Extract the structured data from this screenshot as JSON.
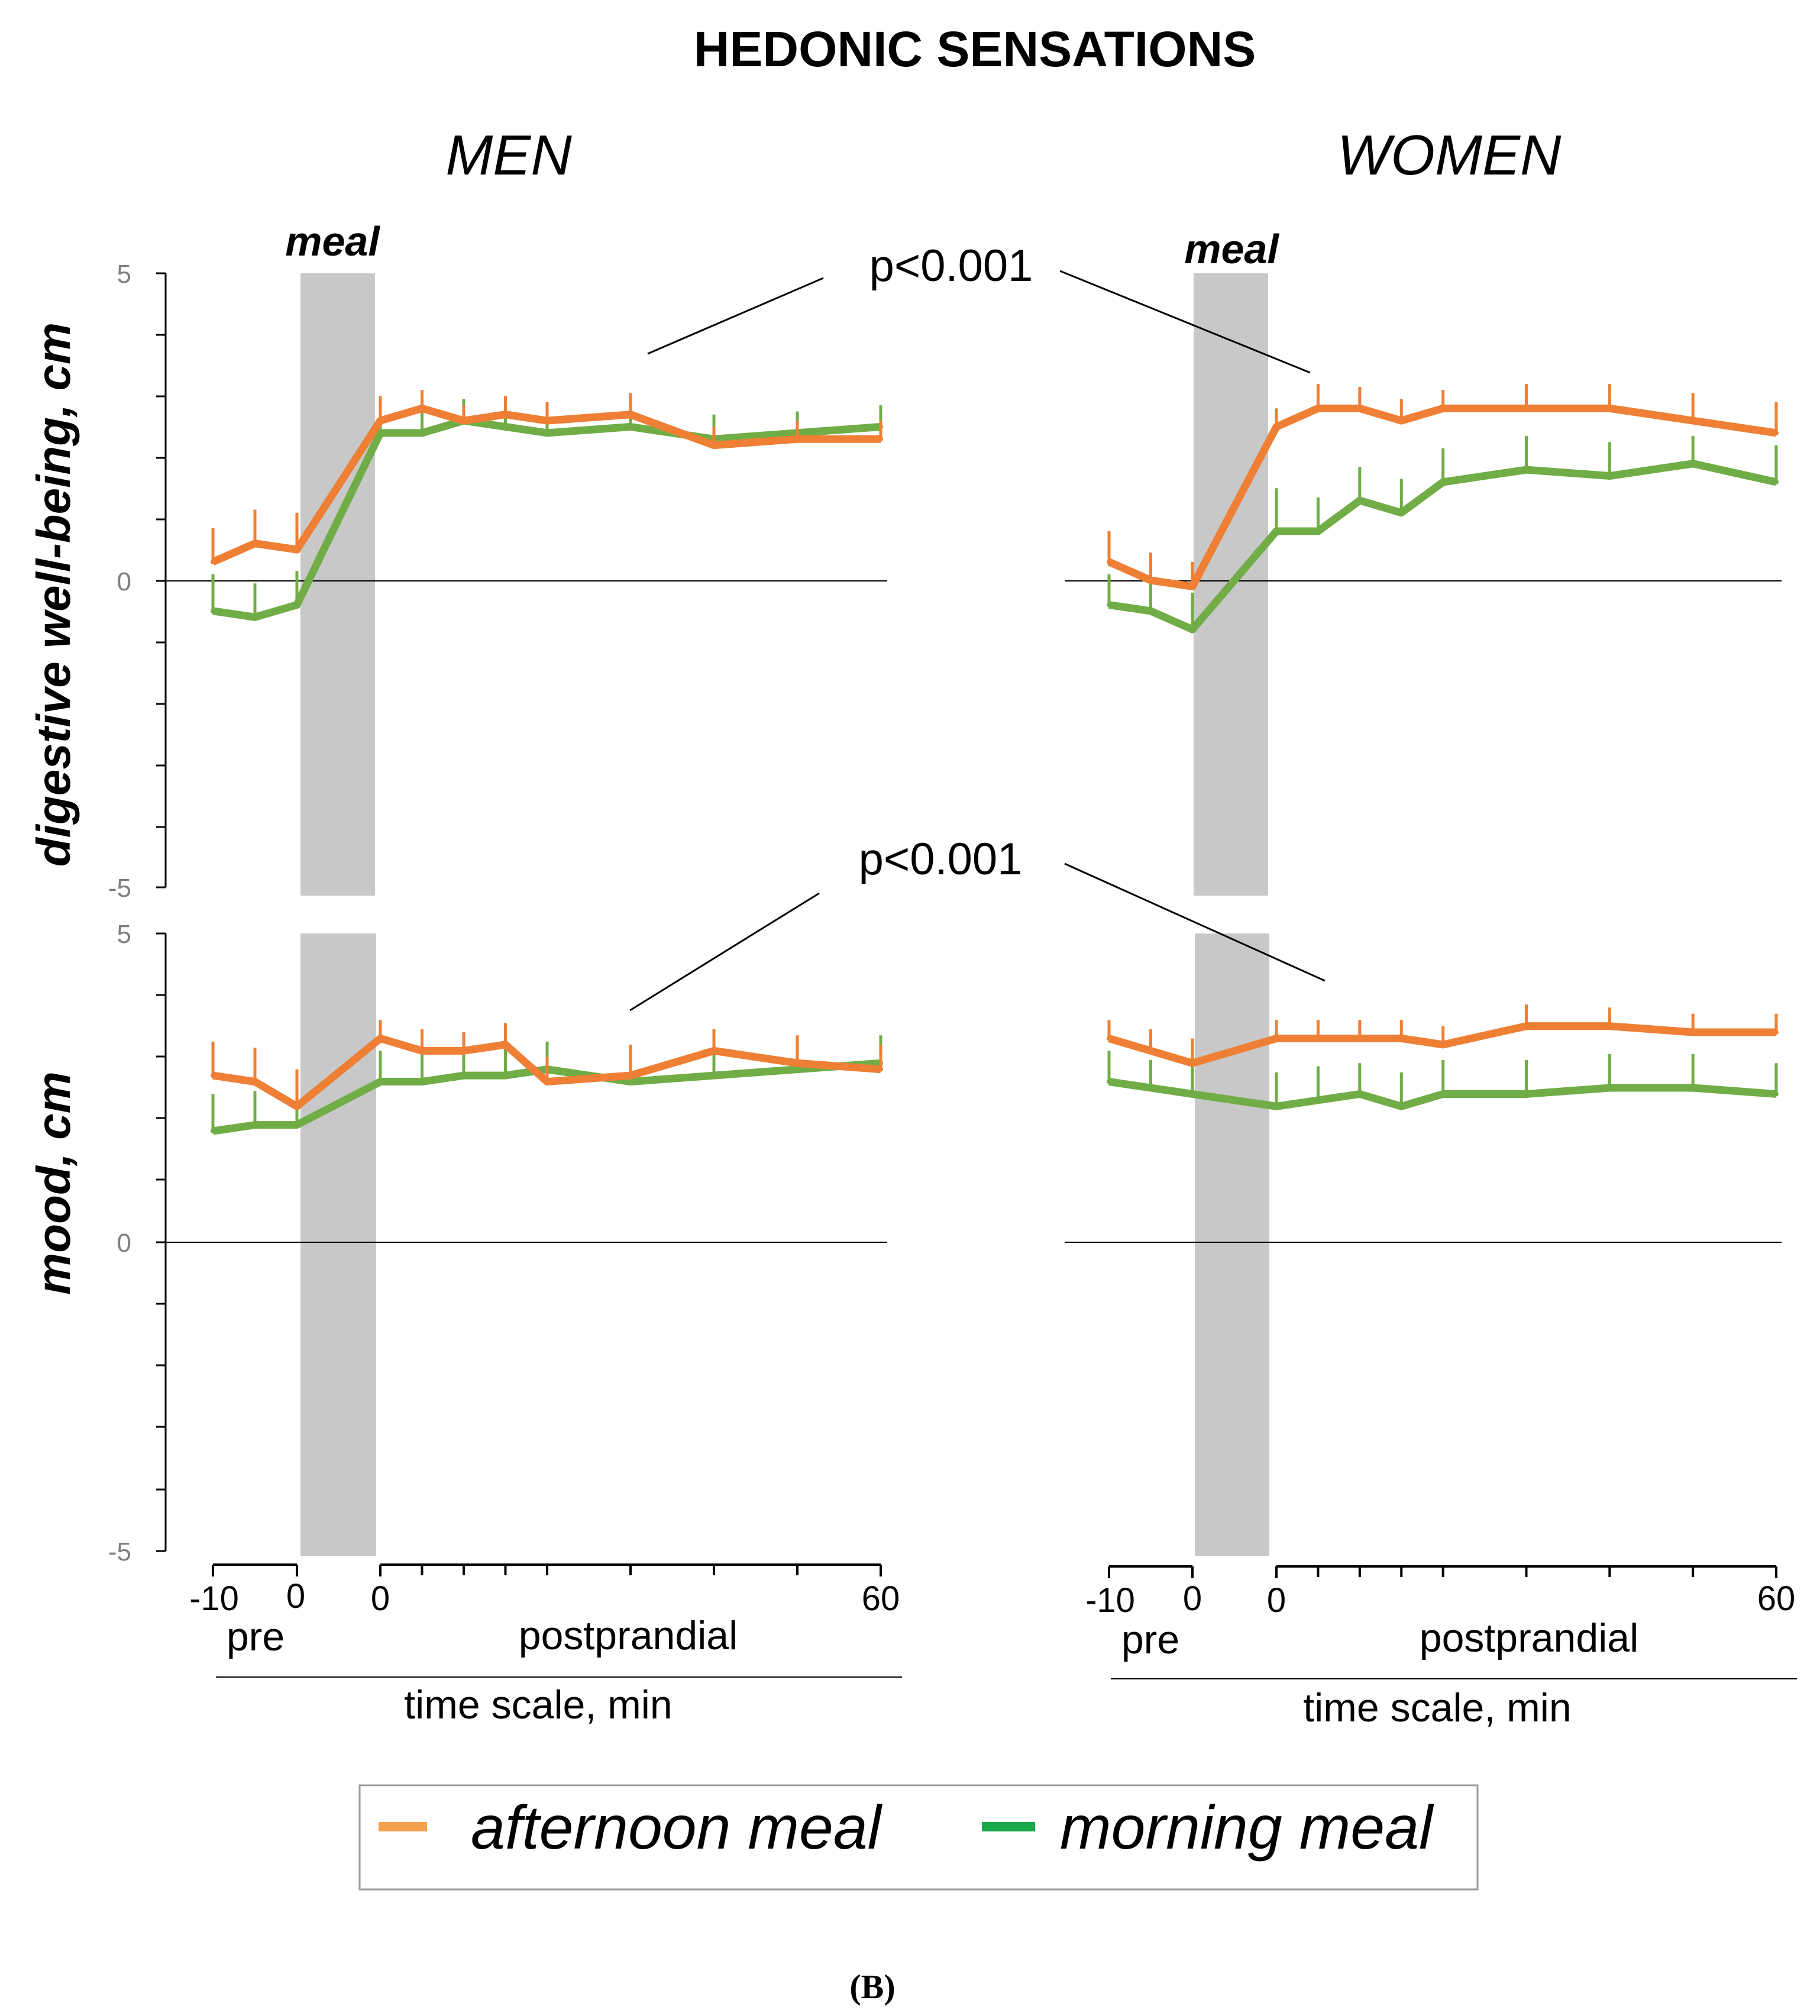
{
  "figure": {
    "title": "HEDONIC SENSATIONS",
    "panel_label": "(B)",
    "columns": [
      "MEN",
      "WOMEN"
    ],
    "meal_label": "meal",
    "stat_annotations": [
      "p<0.001",
      "p<0.001"
    ],
    "x_ticks": {
      "neg": "-10",
      "zero_pre": "0",
      "zero_post": "0",
      "end": "60"
    },
    "x_section_labels": {
      "pre": "pre",
      "post": "postprandial"
    },
    "x_axis_label": "time scale, min",
    "legend": [
      {
        "label": "afternoon meal",
        "color": "#f5a04c"
      },
      {
        "label": "morning meal",
        "color": "#1aa84c"
      }
    ],
    "colors": {
      "afternoon": "#ef7f34",
      "morning": "#70ad47",
      "meal_band": "#c8c8c8"
    }
  },
  "chart_data": [
    {
      "type": "line",
      "title": "MEN",
      "ylabel": "digestive well-being, cm",
      "ylim": [
        -5,
        5
      ],
      "yticks": [
        -5,
        0,
        5
      ],
      "pre_x": [
        -10,
        -5,
        0
      ],
      "post_x": [
        0,
        5,
        10,
        15,
        20,
        30,
        40,
        50,
        60
      ],
      "series": [
        {
          "name": "afternoon meal",
          "pre": [
            0.3,
            0.6,
            0.5
          ],
          "post": [
            2.6,
            2.8,
            2.6,
            2.7,
            2.6,
            2.7,
            2.2,
            2.3,
            2.3
          ],
          "err_pre": [
            0.55,
            0.55,
            0.6
          ],
          "err_post": [
            0.4,
            0.3,
            0.25,
            0.3,
            0.3,
            0.35,
            0.3,
            0.3,
            0.3
          ]
        },
        {
          "name": "morning meal",
          "pre": [
            -0.5,
            -0.6,
            -0.4
          ],
          "post": [
            2.4,
            2.4,
            2.6,
            2.5,
            2.4,
            2.5,
            2.3,
            2.4,
            2.5
          ],
          "err_pre": [
            0.6,
            0.55,
            0.55
          ],
          "err_post": [
            0.35,
            0.45,
            0.35,
            0.3,
            0.35,
            0.35,
            0.4,
            0.35,
            0.35
          ]
        }
      ]
    },
    {
      "type": "line",
      "title": "WOMEN",
      "ylabel": "digestive well-being, cm",
      "ylim": [
        -5,
        5
      ],
      "yticks": [
        -5,
        0,
        5
      ],
      "pre_x": [
        -10,
        -5,
        0
      ],
      "post_x": [
        0,
        5,
        10,
        15,
        20,
        30,
        40,
        50,
        60
      ],
      "series": [
        {
          "name": "afternoon meal",
          "pre": [
            0.3,
            0.0,
            -0.1
          ],
          "post": [
            2.5,
            2.8,
            2.8,
            2.6,
            2.8,
            2.8,
            2.8,
            2.6,
            2.4
          ],
          "err_pre": [
            0.5,
            0.45,
            0.4
          ],
          "err_post": [
            0.3,
            0.4,
            0.35,
            0.35,
            0.3,
            0.4,
            0.4,
            0.45,
            0.5
          ]
        },
        {
          "name": "morning meal",
          "pre": [
            -0.4,
            -0.5,
            -0.8
          ],
          "post": [
            0.8,
            0.8,
            1.3,
            1.1,
            1.6,
            1.8,
            1.7,
            1.9,
            1.6
          ],
          "err_pre": [
            0.5,
            0.55,
            0.6
          ],
          "err_post": [
            0.7,
            0.55,
            0.55,
            0.55,
            0.55,
            0.55,
            0.55,
            0.45,
            0.6
          ]
        }
      ]
    },
    {
      "type": "line",
      "title": "MEN",
      "ylabel": "mood, cm",
      "ylim": [
        -5,
        5
      ],
      "yticks": [
        -5,
        0,
        5
      ],
      "pre_x": [
        -10,
        -5,
        0
      ],
      "post_x": [
        0,
        5,
        10,
        15,
        20,
        30,
        40,
        50,
        60
      ],
      "series": [
        {
          "name": "afternoon meal",
          "pre": [
            2.7,
            2.6,
            2.2
          ],
          "post": [
            3.3,
            3.1,
            3.1,
            3.2,
            2.6,
            2.7,
            3.1,
            2.9,
            2.8
          ],
          "err_pre": [
            0.55,
            0.55,
            0.6
          ],
          "err_post": [
            0.3,
            0.35,
            0.3,
            0.35,
            0.4,
            0.5,
            0.35,
            0.45,
            0.4
          ]
        },
        {
          "name": "morning meal",
          "pre": [
            1.8,
            1.9,
            1.9
          ],
          "post": [
            2.6,
            2.6,
            2.7,
            2.7,
            2.8,
            2.6,
            2.7,
            2.8,
            2.9
          ],
          "err_pre": [
            0.6,
            0.55,
            0.55
          ],
          "err_post": [
            0.5,
            0.45,
            0.4,
            0.45,
            0.45,
            0.45,
            0.4,
            0.4,
            0.45
          ]
        }
      ]
    },
    {
      "type": "line",
      "title": "WOMEN",
      "ylabel": "mood, cm",
      "ylim": [
        -5,
        5
      ],
      "yticks": [
        -5,
        0,
        5
      ],
      "pre_x": [
        -10,
        -5,
        0
      ],
      "post_x": [
        0,
        5,
        10,
        15,
        20,
        30,
        40,
        50,
        60
      ],
      "series": [
        {
          "name": "afternoon meal",
          "pre": [
            3.3,
            3.1,
            2.9
          ],
          "post": [
            3.3,
            3.3,
            3.3,
            3.3,
            3.2,
            3.5,
            3.5,
            3.4,
            3.4
          ],
          "err_pre": [
            0.3,
            0.35,
            0.4
          ],
          "err_post": [
            0.3,
            0.3,
            0.3,
            0.3,
            0.3,
            0.35,
            0.3,
            0.3,
            0.3
          ]
        },
        {
          "name": "morning meal",
          "pre": [
            2.6,
            2.5,
            2.4
          ],
          "post": [
            2.2,
            2.3,
            2.4,
            2.2,
            2.4,
            2.4,
            2.5,
            2.5,
            2.4
          ],
          "err_pre": [
            0.5,
            0.45,
            0.45
          ],
          "err_post": [
            0.55,
            0.55,
            0.5,
            0.55,
            0.55,
            0.55,
            0.55,
            0.55,
            0.5
          ]
        }
      ]
    }
  ]
}
